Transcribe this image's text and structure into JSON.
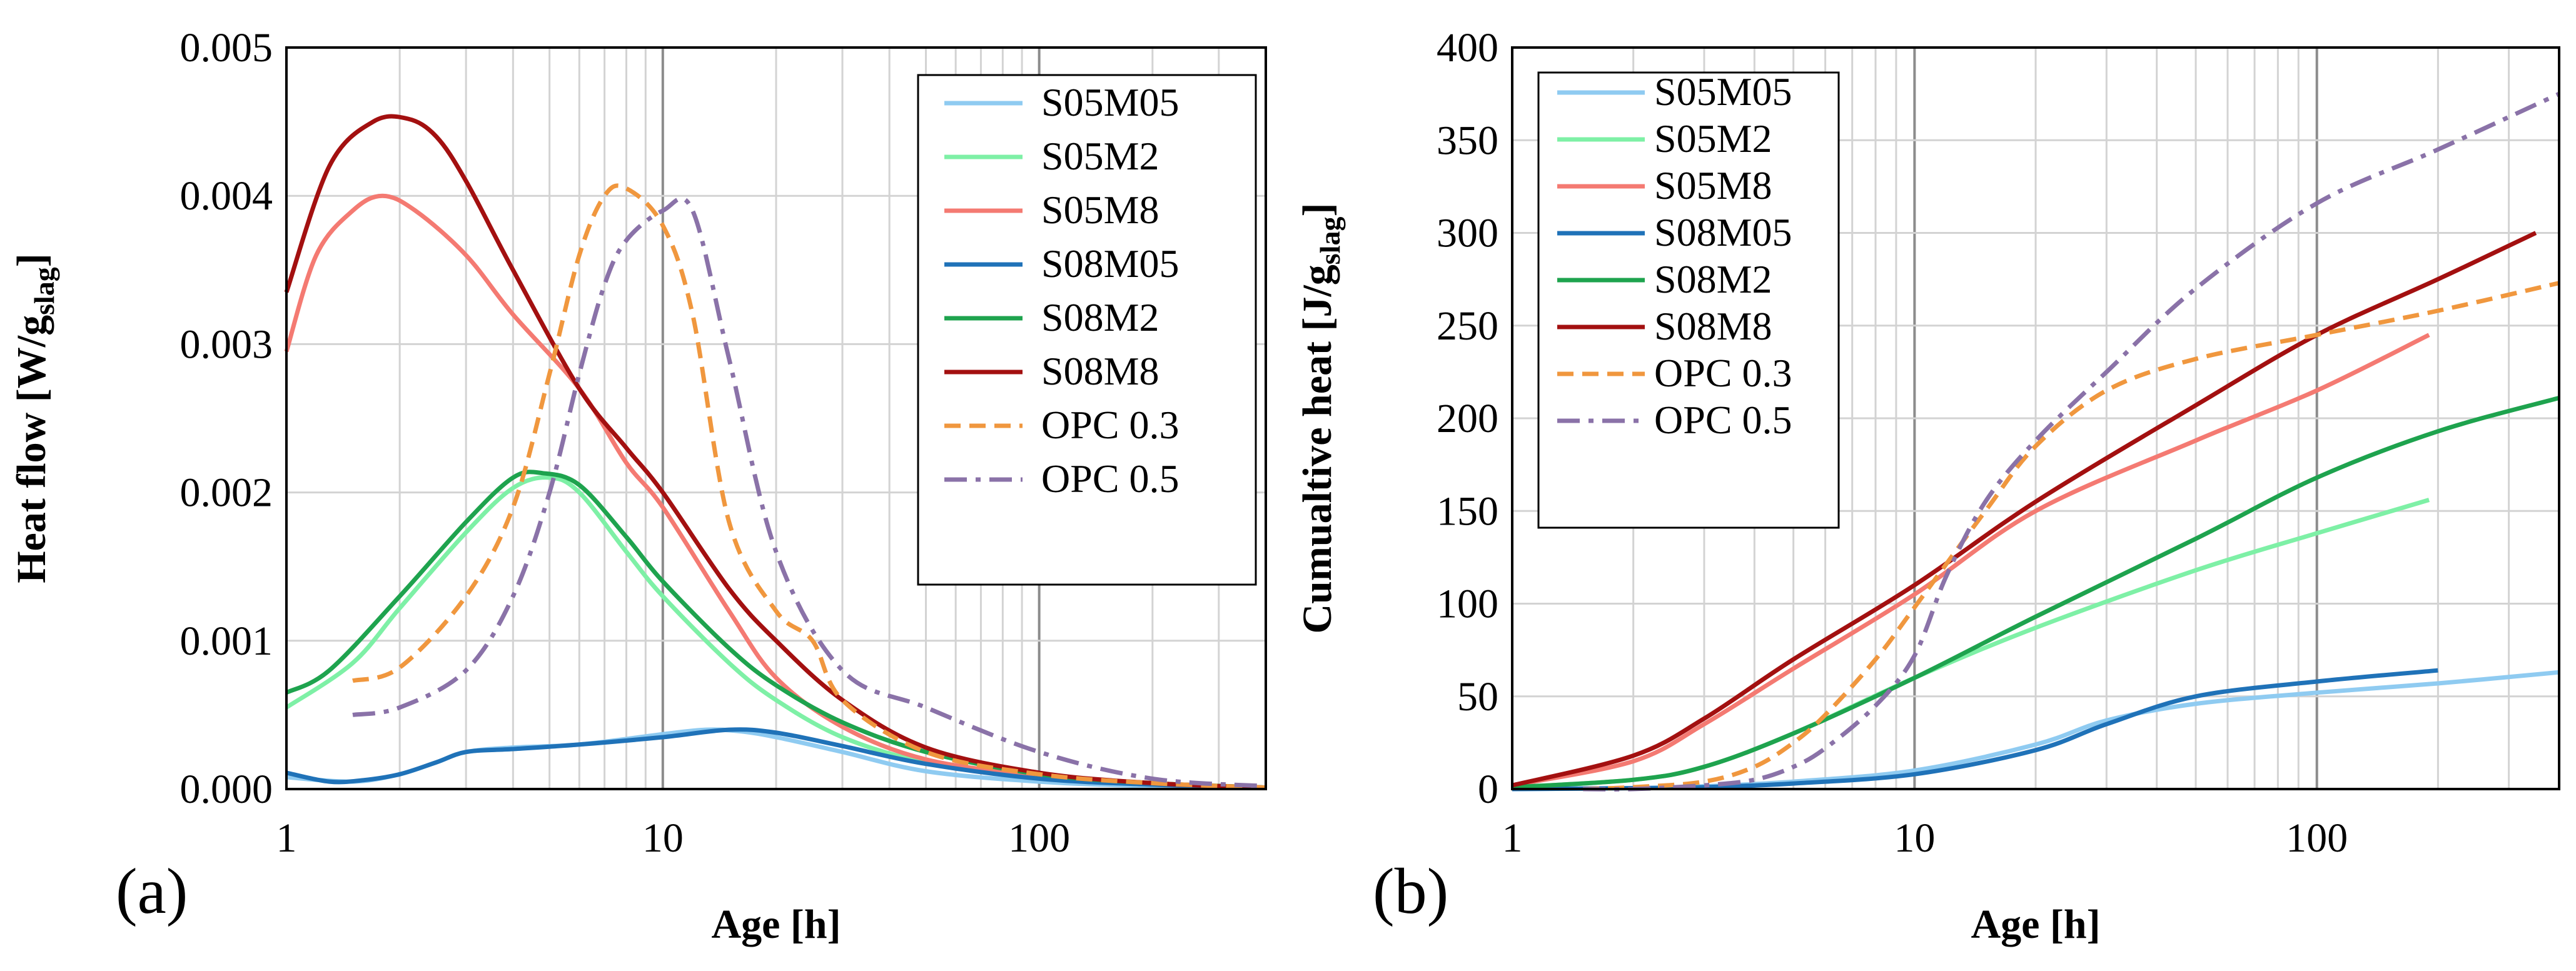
{
  "chart_data": [
    {
      "type": "line",
      "panel_label": "(a)",
      "xlabel": "Age [h]",
      "ylabel_main": "Heat flow [W/g",
      "ylabel_sub": "slag",
      "ylabel_end": "]",
      "xscale": "log",
      "xlim": [
        1,
        400
      ],
      "ylim": [
        0,
        0.005
      ],
      "x_ticks": [
        1,
        10,
        100
      ],
      "x_tick_labels": [
        "1",
        "10",
        "100"
      ],
      "y_ticks": [
        0,
        0.001,
        0.002,
        0.003,
        0.004,
        0.005
      ],
      "y_tick_labels": [
        "0.000",
        "0.001",
        "0.002",
        "0.003",
        "0.004",
        "0.005"
      ],
      "grid": true,
      "legend_position": "top-right",
      "series": [
        {
          "name": "S05M05",
          "color": "#8fcbf1",
          "dash": "solid",
          "points": [
            [
              1,
              8e-05
            ],
            [
              1.5,
              5e-05
            ],
            [
              2,
              0.0001
            ],
            [
              2.5,
              0.00018
            ],
            [
              3,
              0.00025
            ],
            [
              4,
              0.00028
            ],
            [
              6,
              0.0003
            ],
            [
              10,
              0.00037
            ],
            [
              13,
              0.0004
            ],
            [
              16,
              0.00039
            ],
            [
              20,
              0.00035
            ],
            [
              30,
              0.00025
            ],
            [
              50,
              0.00012
            ],
            [
              100,
              5e-05
            ],
            [
              200,
              2e-05
            ],
            [
              400,
              1e-05
            ]
          ]
        },
        {
          "name": "S05M2",
          "color": "#7ef0a6",
          "dash": "solid",
          "points": [
            [
              1,
              0.00055
            ],
            [
              1.5,
              0.00085
            ],
            [
              2,
              0.00122
            ],
            [
              3,
              0.00173
            ],
            [
              4,
              0.00203
            ],
            [
              5,
              0.0021
            ],
            [
              6,
              0.002
            ],
            [
              8,
              0.0016
            ],
            [
              10,
              0.0013
            ],
            [
              15,
              0.00085
            ],
            [
              20,
              0.0006
            ],
            [
              30,
              0.00035
            ],
            [
              50,
              0.00018
            ],
            [
              100,
              8e-05
            ],
            [
              200,
              3e-05
            ],
            [
              400,
              1e-05
            ]
          ]
        },
        {
          "name": "S05M8",
          "color": "#f47a72",
          "dash": "solid",
          "points": [
            [
              1,
              0.00295
            ],
            [
              1.2,
              0.0036
            ],
            [
              1.5,
              0.0039
            ],
            [
              1.8,
              0.004
            ],
            [
              2.2,
              0.0039
            ],
            [
              3,
              0.0036
            ],
            [
              4,
              0.0032
            ],
            [
              6,
              0.0027
            ],
            [
              8,
              0.0022
            ],
            [
              10,
              0.0019
            ],
            [
              15,
              0.0012
            ],
            [
              20,
              0.00075
            ],
            [
              30,
              0.00042
            ],
            [
              50,
              0.0002
            ],
            [
              100,
              9e-05
            ],
            [
              200,
              3e-05
            ],
            [
              400,
              1e-05
            ]
          ]
        },
        {
          "name": "S08M05",
          "color": "#1f72b8",
          "dash": "solid",
          "points": [
            [
              1,
              0.00011
            ],
            [
              1.3,
              5e-05
            ],
            [
              1.6,
              6e-05
            ],
            [
              2,
              0.0001
            ],
            [
              2.5,
              0.00018
            ],
            [
              3,
              0.00025
            ],
            [
              4,
              0.00027
            ],
            [
              6,
              0.0003
            ],
            [
              10,
              0.00035
            ],
            [
              15,
              0.0004
            ],
            [
              20,
              0.00038
            ],
            [
              30,
              0.00029
            ],
            [
              50,
              0.00017
            ],
            [
              100,
              7e-05
            ],
            [
              200,
              3e-05
            ],
            [
              400,
              1e-05
            ]
          ]
        },
        {
          "name": "S08M2",
          "color": "#1ea34e",
          "dash": "solid",
          "points": [
            [
              1,
              0.00065
            ],
            [
              1.3,
              0.0008
            ],
            [
              2,
              0.0013
            ],
            [
              3,
              0.0018
            ],
            [
              4,
              0.0021
            ],
            [
              4.8,
              0.00213
            ],
            [
              6,
              0.00205
            ],
            [
              8,
              0.0017
            ],
            [
              10,
              0.0014
            ],
            [
              15,
              0.00095
            ],
            [
              20,
              0.0007
            ],
            [
              30,
              0.00045
            ],
            [
              50,
              0.00025
            ],
            [
              100,
              0.0001
            ],
            [
              200,
              4e-05
            ],
            [
              400,
              1e-05
            ]
          ]
        },
        {
          "name": "S08M8",
          "color": "#a31010",
          "dash": "solid",
          "points": [
            [
              1,
              0.00335
            ],
            [
              1.3,
              0.0042
            ],
            [
              1.7,
              0.0045
            ],
            [
              2.1,
              0.00452
            ],
            [
              2.5,
              0.0044
            ],
            [
              3,
              0.0041
            ],
            [
              4,
              0.0035
            ],
            [
              6,
              0.0027
            ],
            [
              8,
              0.0023
            ],
            [
              10,
              0.002
            ],
            [
              15,
              0.00135
            ],
            [
              20,
              0.001
            ],
            [
              30,
              0.0006
            ],
            [
              50,
              0.00028
            ],
            [
              100,
              0.00011
            ],
            [
              200,
              4e-05
            ],
            [
              400,
              1e-05
            ]
          ]
        },
        {
          "name": "OPC 0.3",
          "color": "#f0973e",
          "dash": "dashed",
          "points": [
            [
              1.5,
              0.00073
            ],
            [
              2,
              0.00082
            ],
            [
              3,
              0.0013
            ],
            [
              4,
              0.0019
            ],
            [
              5,
              0.0028
            ],
            [
              6,
              0.0036
            ],
            [
              7,
              0.004
            ],
            [
              8,
              0.00405
            ],
            [
              10,
              0.0038
            ],
            [
              12,
              0.0032
            ],
            [
              15,
              0.0018
            ],
            [
              20,
              0.0012
            ],
            [
              25,
              0.001
            ],
            [
              30,
              0.0006
            ],
            [
              50,
              0.00025
            ],
            [
              100,
              0.0001
            ],
            [
              200,
              4e-05
            ],
            [
              400,
              1e-05
            ]
          ]
        },
        {
          "name": "OPC 0.5",
          "color": "#8a72a8",
          "dash": "dashdot",
          "points": [
            [
              1.5,
              0.0005
            ],
            [
              2,
              0.00055
            ],
            [
              3,
              0.0008
            ],
            [
              4,
              0.0013
            ],
            [
              5,
              0.002
            ],
            [
              6,
              0.0028
            ],
            [
              7,
              0.0034
            ],
            [
              8,
              0.0037
            ],
            [
              10,
              0.0039
            ],
            [
              12,
              0.0039
            ],
            [
              15,
              0.0029
            ],
            [
              20,
              0.0016
            ],
            [
              30,
              0.0008
            ],
            [
              50,
              0.00055
            ],
            [
              100,
              0.00025
            ],
            [
              200,
              7e-05
            ],
            [
              400,
              2e-05
            ]
          ]
        }
      ]
    },
    {
      "type": "line",
      "panel_label": "(b)",
      "xlabel": "Age [h]",
      "ylabel_main": "Cumualtive heat [J/g",
      "ylabel_sub": "slag",
      "ylabel_end": "]",
      "xscale": "log",
      "xlim": [
        1,
        400
      ],
      "ylim": [
        0,
        400
      ],
      "x_ticks": [
        1,
        10,
        100
      ],
      "x_tick_labels": [
        "1",
        "10",
        "100"
      ],
      "y_ticks": [
        0,
        50,
        100,
        150,
        200,
        250,
        300,
        350,
        400
      ],
      "y_tick_labels": [
        "0",
        "50",
        "100",
        "150",
        "200",
        "250",
        "300",
        "350",
        "400"
      ],
      "grid": true,
      "legend_position": "top-left",
      "series": [
        {
          "name": "S05M05",
          "color": "#8fcbf1",
          "dash": "solid",
          "points": [
            [
              1,
              0
            ],
            [
              2,
              0.5
            ],
            [
              3,
              1.5
            ],
            [
              5,
              4
            ],
            [
              10,
              10
            ],
            [
              20,
              24
            ],
            [
              30,
              37
            ],
            [
              50,
              46
            ],
            [
              100,
              52
            ],
            [
              200,
              57
            ],
            [
              400,
              63
            ]
          ]
        },
        {
          "name": "S05M2",
          "color": "#7ef0a6",
          "dash": "solid",
          "points": [
            [
              1,
              1
            ],
            [
              2,
              5
            ],
            [
              3,
              12
            ],
            [
              5,
              30
            ],
            [
              10,
              60
            ],
            [
              20,
              87
            ],
            [
              50,
              118
            ],
            [
              100,
              138
            ],
            [
              190,
              156
            ]
          ]
        },
        {
          "name": "S05M8",
          "color": "#f47a72",
          "dash": "solid",
          "points": [
            [
              1,
              2
            ],
            [
              2,
              15
            ],
            [
              3,
              35
            ],
            [
              5,
              65
            ],
            [
              10,
              105
            ],
            [
              20,
              150
            ],
            [
              50,
              188
            ],
            [
              100,
              215
            ],
            [
              190,
              245
            ]
          ]
        },
        {
          "name": "S08M05",
          "color": "#1f72b8",
          "dash": "solid",
          "points": [
            [
              1,
              0
            ],
            [
              2,
              0.5
            ],
            [
              3,
              1
            ],
            [
              5,
              3
            ],
            [
              10,
              8
            ],
            [
              20,
              21
            ],
            [
              30,
              35
            ],
            [
              50,
              50
            ],
            [
              100,
              58
            ],
            [
              200,
              64
            ]
          ]
        },
        {
          "name": "S08M2",
          "color": "#1ea34e",
          "dash": "solid",
          "points": [
            [
              1,
              1
            ],
            [
              2,
              5
            ],
            [
              3,
              12
            ],
            [
              5,
              30
            ],
            [
              10,
              60
            ],
            [
              20,
              93
            ],
            [
              50,
              135
            ],
            [
              100,
              168
            ],
            [
              200,
              193
            ],
            [
              400,
              211
            ]
          ]
        },
        {
          "name": "S08M8",
          "color": "#a31010",
          "dash": "solid",
          "points": [
            [
              1,
              2
            ],
            [
              2,
              18
            ],
            [
              3,
              38
            ],
            [
              5,
              70
            ],
            [
              10,
              110
            ],
            [
              20,
              155
            ],
            [
              50,
              207
            ],
            [
              100,
              245
            ],
            [
              200,
              275
            ],
            [
              350,
              300
            ]
          ]
        },
        {
          "name": "OPC 0.3",
          "color": "#f0973e",
          "dash": "dashed",
          "points": [
            [
              1.5,
              0
            ],
            [
              2,
              1
            ],
            [
              3,
              4
            ],
            [
              4,
              12
            ],
            [
              5,
              25
            ],
            [
              6,
              40
            ],
            [
              8,
              70
            ],
            [
              10,
              98
            ],
            [
              15,
              150
            ],
            [
              20,
              185
            ],
            [
              30,
              215
            ],
            [
              50,
              232
            ],
            [
              100,
              245
            ],
            [
              200,
              258
            ],
            [
              400,
              273
            ]
          ]
        },
        {
          "name": "OPC 0.5",
          "color": "#8a72a8",
          "dash": "dashdot",
          "points": [
            [
              1.5,
              0
            ],
            [
              2,
              0
            ],
            [
              3,
              2
            ],
            [
              4,
              5
            ],
            [
              5,
              12
            ],
            [
              6,
              22
            ],
            [
              8,
              45
            ],
            [
              10,
              72
            ],
            [
              12,
              115
            ],
            [
              15,
              155
            ],
            [
              20,
              188
            ],
            [
              30,
              225
            ],
            [
              50,
              270
            ],
            [
              100,
              316
            ],
            [
              200,
              345
            ],
            [
              400,
              375
            ]
          ]
        }
      ]
    }
  ]
}
